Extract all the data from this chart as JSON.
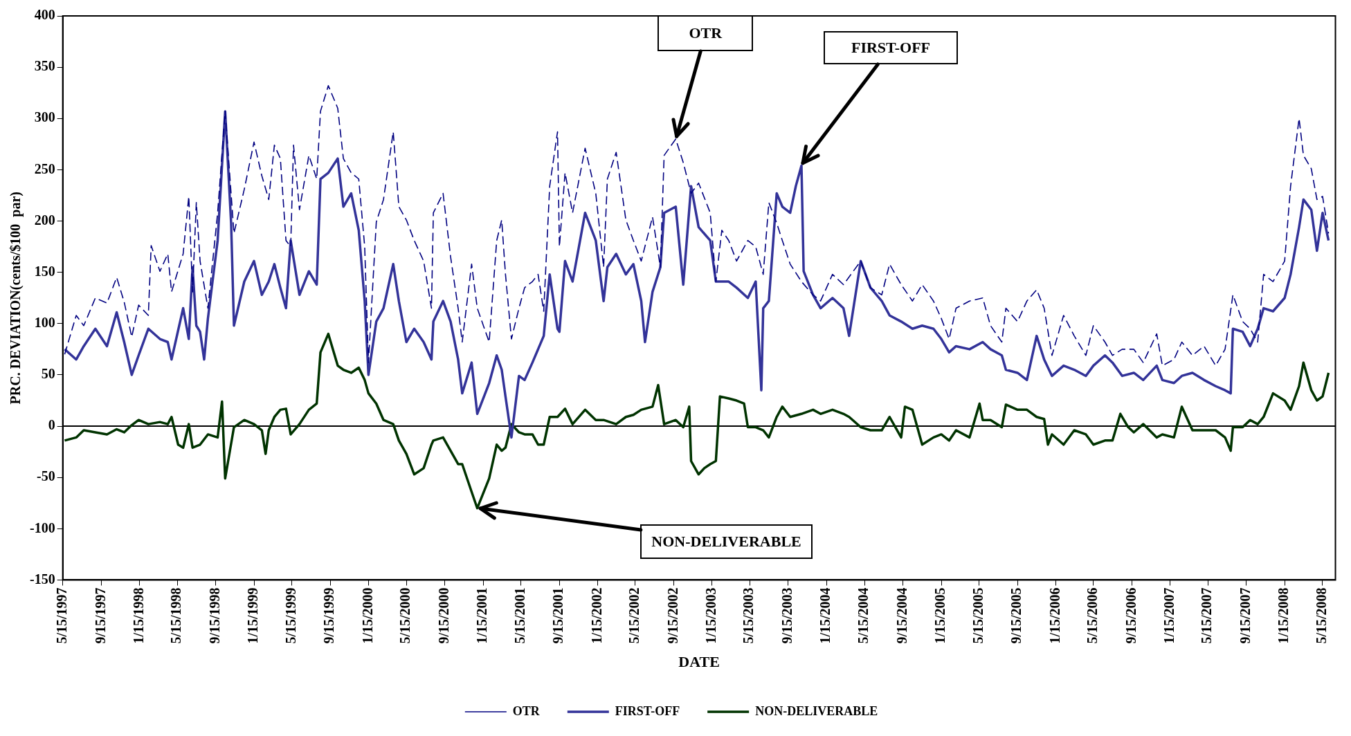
{
  "chart_data": {
    "type": "line",
    "xlabel": "DATE",
    "ylabel": "PRC. DEVIATION(cents/$100  par)",
    "xlim": [
      "1997-05-15",
      "2008-06-25"
    ],
    "ylim": [
      -150,
      400
    ],
    "yticks": [
      -150,
      -100,
      -50,
      0,
      50,
      100,
      150,
      200,
      250,
      300,
      350,
      400
    ],
    "xticks": [
      {
        "value": "1997-05-15",
        "label": "5/15/1997"
      },
      {
        "value": "1997-09-15",
        "label": "9/15/1997"
      },
      {
        "value": "1998-01-15",
        "label": "1/15/1998"
      },
      {
        "value": "1998-05-15",
        "label": "5/15/1998"
      },
      {
        "value": "1998-09-15",
        "label": "9/15/1998"
      },
      {
        "value": "1999-01-15",
        "label": "1/15/1999"
      },
      {
        "value": "1999-05-15",
        "label": "5/15/1999"
      },
      {
        "value": "1999-09-15",
        "label": "9/15/1999"
      },
      {
        "value": "2000-01-15",
        "label": "1/15/2000"
      },
      {
        "value": "2000-05-15",
        "label": "5/15/2000"
      },
      {
        "value": "2000-09-15",
        "label": "9/15/2000"
      },
      {
        "value": "2001-01-15",
        "label": "1/15/2001"
      },
      {
        "value": "2001-05-15",
        "label": "5/15/2001"
      },
      {
        "value": "2001-09-15",
        "label": "9/15/2001"
      },
      {
        "value": "2002-01-15",
        "label": "1/15/2002"
      },
      {
        "value": "2002-05-15",
        "label": "5/15/2002"
      },
      {
        "value": "2002-09-15",
        "label": "9/15/2002"
      },
      {
        "value": "2003-01-15",
        "label": "1/15/2003"
      },
      {
        "value": "2003-05-15",
        "label": "5/15/2003"
      },
      {
        "value": "2003-09-15",
        "label": "9/15/2003"
      },
      {
        "value": "2004-01-15",
        "label": "1/15/2004"
      },
      {
        "value": "2004-05-15",
        "label": "5/15/2004"
      },
      {
        "value": "2004-09-15",
        "label": "9/15/2004"
      },
      {
        "value": "2005-01-15",
        "label": "1/15/2005"
      },
      {
        "value": "2005-05-15",
        "label": "5/15/2005"
      },
      {
        "value": "2005-09-15",
        "label": "9/15/2005"
      },
      {
        "value": "2006-01-15",
        "label": "1/15/2006"
      },
      {
        "value": "2006-05-15",
        "label": "5/15/2006"
      },
      {
        "value": "2006-09-15",
        "label": "9/15/2006"
      },
      {
        "value": "2007-01-15",
        "label": "1/15/2007"
      },
      {
        "value": "2007-05-15",
        "label": "5/15/2007"
      },
      {
        "value": "2007-09-15",
        "label": "9/15/2007"
      },
      {
        "value": "2008-01-15",
        "label": "1/15/2008"
      },
      {
        "value": "2008-05-15",
        "label": "5/15/2008"
      }
    ],
    "grid": false,
    "legend": "bottom",
    "ref_lines": [
      {
        "axis": "y",
        "value": 0
      }
    ],
    "annotations": [
      {
        "text": "OTR",
        "x": "2002-09-21",
        "y": 280
      },
      {
        "text": "FIRST-OFF",
        "x": "2003-10-27",
        "y": 254
      },
      {
        "text": "NON-DELIVERABLE",
        "x": "2000-12-27",
        "y": -80
      }
    ],
    "series": [
      {
        "name": "OTR",
        "color": "#000080",
        "line_style": "dashed",
        "x": [
          "1997-05-21",
          "1997-06-27",
          "1997-07-21",
          "1997-08-27",
          "1997-10-03",
          "1997-11-03",
          "1997-11-27",
          "1997-12-21",
          "1998-01-12",
          "1998-02-12",
          "1998-02-21",
          "1998-03-21",
          "1998-04-15",
          "1998-04-27",
          "1998-06-03",
          "1998-06-21",
          "1998-07-03",
          "1998-07-15",
          "1998-07-27",
          "1998-08-21",
          "1998-09-21",
          "1998-10-15",
          "1998-11-12",
          "1998-12-15",
          "1999-01-15",
          "1999-02-09",
          "1999-03-03",
          "1999-03-21",
          "1999-04-09",
          "1999-04-27",
          "1999-05-12",
          "1999-05-21",
          "1999-06-09",
          "1999-07-09",
          "1999-08-03",
          "1999-08-15",
          "1999-09-09",
          "1999-10-09",
          "1999-10-27",
          "1999-11-21",
          "1999-12-15",
          "2000-01-03",
          "2000-01-15",
          "2000-02-09",
          "2000-03-03",
          "2000-04-03",
          "2000-04-21",
          "2000-05-15",
          "2000-06-09",
          "2000-07-09",
          "2000-08-03",
          "2000-08-09",
          "2000-09-09",
          "2000-10-03",
          "2000-10-27",
          "2000-11-09",
          "2000-12-09",
          "2000-12-27",
          "2001-02-03",
          "2001-02-27",
          "2001-03-15",
          "2001-03-27",
          "2001-04-15",
          "2001-05-09",
          "2001-05-27",
          "2001-06-21",
          "2001-07-09",
          "2001-07-27",
          "2001-08-15",
          "2001-09-09",
          "2001-09-15",
          "2001-10-03",
          "2001-10-27",
          "2001-12-06",
          "2002-01-09",
          "2002-02-03",
          "2002-02-15",
          "2002-03-15",
          "2002-04-15",
          "2002-05-09",
          "2002-06-03",
          "2002-07-09",
          "2002-08-03",
          "2002-08-15",
          "2002-09-21",
          "2002-10-15",
          "2002-11-09",
          "2002-12-03",
          "2003-01-09",
          "2003-01-27",
          "2003-02-15",
          "2003-03-09",
          "2003-04-03",
          "2003-05-09",
          "2003-06-03",
          "2003-06-27",
          "2003-07-15",
          "2003-08-09",
          "2003-08-27",
          "2003-09-21",
          "2003-10-27",
          "2003-12-03",
          "2003-12-27",
          "2004-02-03",
          "2004-03-09",
          "2004-05-03",
          "2004-06-03",
          "2004-07-09",
          "2004-08-03",
          "2004-09-09",
          "2004-10-15",
          "2004-11-15",
          "2004-12-21",
          "2005-01-15",
          "2005-02-09",
          "2005-03-03",
          "2005-04-15",
          "2005-05-27",
          "2005-06-21",
          "2005-07-27",
          "2005-08-09",
          "2005-09-15",
          "2005-10-15",
          "2005-11-15",
          "2005-12-09",
          "2006-01-03",
          "2006-02-09",
          "2006-03-15",
          "2006-04-21",
          "2006-05-15",
          "2006-06-21",
          "2006-07-15",
          "2006-08-15",
          "2006-09-21",
          "2006-10-21",
          "2006-12-03",
          "2006-12-21",
          "2007-01-27",
          "2007-02-21",
          "2007-03-27",
          "2007-05-03",
          "2007-06-09",
          "2007-07-09",
          "2007-08-03",
          "2007-09-03",
          "2007-09-27",
          "2007-10-21",
          "2007-11-09",
          "2007-12-09",
          "2008-01-15",
          "2008-02-03",
          "2008-03-01",
          "2008-03-15",
          "2008-04-09",
          "2008-04-27",
          "2008-05-15",
          "2008-06-03"
        ],
        "values": [
          70,
          108,
          98,
          125,
          120,
          145,
          121,
          87,
          118,
          108,
          176,
          151,
          168,
          131,
          168,
          224,
          131,
          218,
          161,
          115,
          208,
          307,
          188,
          231,
          277,
          244,
          221,
          274,
          261,
          181,
          175,
          274,
          211,
          264,
          241,
          307,
          332,
          310,
          261,
          247,
          241,
          175,
          62,
          199,
          221,
          287,
          214,
          201,
          181,
          161,
          115,
          208,
          227,
          165,
          115,
          82,
          158,
          115,
          82,
          181,
          201,
          148,
          85,
          115,
          135,
          141,
          148,
          112,
          234,
          287,
          175,
          247,
          208,
          271,
          227,
          155,
          241,
          267,
          201,
          181,
          161,
          204,
          155,
          264,
          280,
          257,
          227,
          237,
          208,
          141,
          191,
          181,
          161,
          181,
          175,
          148,
          218,
          198,
          181,
          158,
          141,
          128,
          122,
          148,
          138,
          161,
          135,
          128,
          158,
          138,
          122,
          138,
          122,
          105,
          85,
          115,
          122,
          125,
          98,
          82,
          115,
          102,
          122,
          133,
          115,
          69,
          108,
          88,
          69,
          98,
          82,
          69,
          75,
          75,
          62,
          90,
          59,
          65,
          82,
          69,
          78,
          59,
          75,
          128,
          102,
          95,
          82,
          148,
          141,
          161,
          234,
          300,
          264,
          251,
          221,
          224,
          188
        ]
      },
      {
        "name": "FIRST-OFF",
        "color": "#333399",
        "line_style": "solid",
        "x": [
          "1997-05-21",
          "1997-06-27",
          "1997-07-21",
          "1997-08-27",
          "1997-10-03",
          "1997-11-03",
          "1997-11-27",
          "1997-12-21",
          "1998-01-12",
          "1998-02-12",
          "1998-03-21",
          "1998-04-15",
          "1998-04-27",
          "1998-06-03",
          "1998-06-21",
          "1998-07-03",
          "1998-07-15",
          "1998-07-27",
          "1998-08-09",
          "1998-08-21",
          "1998-09-21",
          "1998-10-15",
          "1998-11-03",
          "1998-11-12",
          "1998-12-15",
          "1999-01-15",
          "1999-02-09",
          "1999-03-03",
          "1999-03-21",
          "1999-04-09",
          "1999-04-27",
          "1999-05-12",
          "1999-06-09",
          "1999-07-09",
          "1999-08-03",
          "1999-08-15",
          "1999-09-09",
          "1999-10-09",
          "1999-10-27",
          "1999-11-21",
          "1999-12-15",
          "2000-01-03",
          "2000-01-15",
          "2000-02-09",
          "2000-03-03",
          "2000-04-03",
          "2000-04-21",
          "2000-05-15",
          "2000-06-09",
          "2000-07-09",
          "2000-08-03",
          "2000-08-09",
          "2000-09-09",
          "2000-10-03",
          "2000-10-27",
          "2000-11-09",
          "2000-12-09",
          "2000-12-27",
          "2001-02-03",
          "2001-02-27",
          "2001-03-15",
          "2001-03-27",
          "2001-04-15",
          "2001-05-09",
          "2001-05-27",
          "2001-06-21",
          "2001-07-09",
          "2001-07-27",
          "2001-08-15",
          "2001-09-09",
          "2001-09-15",
          "2001-10-03",
          "2001-10-27",
          "2001-12-06",
          "2002-01-09",
          "2002-02-03",
          "2002-02-15",
          "2002-03-15",
          "2002-04-15",
          "2002-05-09",
          "2002-06-03",
          "2002-06-15",
          "2002-07-09",
          "2002-08-03",
          "2002-08-15",
          "2002-09-21",
          "2002-10-15",
          "2002-11-09",
          "2002-12-03",
          "2003-01-09",
          "2003-01-27",
          "2003-02-15",
          "2003-03-09",
          "2003-04-03",
          "2003-05-09",
          "2003-06-03",
          "2003-06-21",
          "2003-06-27",
          "2003-07-15",
          "2003-08-09",
          "2003-08-27",
          "2003-09-21",
          "2003-10-09",
          "2003-10-27",
          "2003-11-03",
          "2003-12-03",
          "2003-12-27",
          "2004-02-03",
          "2004-03-09",
          "2004-03-27",
          "2004-05-03",
          "2004-06-03",
          "2004-07-09",
          "2004-08-03",
          "2004-09-09",
          "2004-10-15",
          "2004-11-15",
          "2004-12-21",
          "2005-01-15",
          "2005-02-09",
          "2005-03-03",
          "2005-04-15",
          "2005-05-27",
          "2005-06-21",
          "2005-07-27",
          "2005-08-09",
          "2005-09-15",
          "2005-10-15",
          "2005-11-15",
          "2005-12-09",
          "2006-01-03",
          "2006-02-09",
          "2006-03-15",
          "2006-04-21",
          "2006-05-15",
          "2006-06-21",
          "2006-07-15",
          "2006-08-15",
          "2006-09-21",
          "2006-10-21",
          "2006-12-03",
          "2006-12-21",
          "2007-01-27",
          "2007-02-21",
          "2007-03-27",
          "2007-05-03",
          "2007-06-09",
          "2007-07-09",
          "2007-07-27",
          "2007-08-03",
          "2007-09-03",
          "2007-09-27",
          "2007-10-21",
          "2007-11-09",
          "2007-12-09",
          "2008-01-15",
          "2008-02-03",
          "2008-03-01",
          "2008-03-15",
          "2008-04-09",
          "2008-04-27",
          "2008-05-15",
          "2008-06-03"
        ],
        "values": [
          75,
          65,
          78,
          95,
          78,
          111,
          82,
          50,
          69,
          95,
          85,
          82,
          65,
          115,
          85,
          155,
          98,
          92,
          65,
          105,
          181,
          307,
          198,
          98,
          141,
          161,
          128,
          141,
          158,
          135,
          115,
          181,
          128,
          151,
          138,
          241,
          247,
          261,
          214,
          227,
          191,
          122,
          50,
          102,
          115,
          158,
          122,
          82,
          95,
          82,
          65,
          102,
          122,
          102,
          65,
          32,
          62,
          12,
          42,
          69,
          55,
          29,
          -11,
          49,
          45,
          62,
          75,
          88,
          148,
          95,
          92,
          161,
          141,
          208,
          181,
          122,
          155,
          168,
          148,
          158,
          122,
          82,
          131,
          155,
          208,
          214,
          138,
          234,
          194,
          181,
          141,
          141,
          141,
          135,
          125,
          141,
          35,
          115,
          122,
          227,
          214,
          208,
          234,
          254,
          151,
          128,
          115,
          125,
          115,
          88,
          161,
          135,
          122,
          108,
          102,
          95,
          98,
          95,
          85,
          72,
          78,
          75,
          82,
          75,
          69,
          55,
          52,
          45,
          88,
          65,
          49,
          59,
          55,
          49,
          59,
          69,
          62,
          49,
          52,
          45,
          59,
          45,
          42,
          49,
          52,
          45,
          39,
          35,
          32,
          95,
          92,
          78,
          95,
          115,
          112,
          125,
          148,
          194,
          221,
          211,
          171,
          208,
          181
        ]
      },
      {
        "name": "NON-DELIVERABLE",
        "color": "#003300",
        "line_style": "solid",
        "x": [
          "1997-05-21",
          "1997-06-27",
          "1997-07-21",
          "1997-08-27",
          "1997-10-03",
          "1997-11-03",
          "1997-11-27",
          "1997-12-21",
          "1998-01-12",
          "1998-02-12",
          "1998-03-21",
          "1998-04-15",
          "1998-04-27",
          "1998-05-18",
          "1998-06-03",
          "1998-06-21",
          "1998-07-03",
          "1998-07-27",
          "1998-08-21",
          "1998-09-21",
          "1998-10-05",
          "1998-10-15",
          "1998-11-12",
          "1998-12-15",
          "1999-01-15",
          "1999-02-09",
          "1999-02-21",
          "1999-03-03",
          "1999-03-21",
          "1999-04-09",
          "1999-04-27",
          "1999-05-12",
          "1999-06-09",
          "1999-07-09",
          "1999-08-03",
          "1999-08-15",
          "1999-09-09",
          "1999-10-09",
          "1999-10-27",
          "1999-11-21",
          "1999-12-15",
          "2000-01-03",
          "2000-01-15",
          "2000-02-09",
          "2000-03-03",
          "2000-04-03",
          "2000-04-21",
          "2000-05-15",
          "2000-06-09",
          "2000-07-09",
          "2000-08-03",
          "2000-08-09",
          "2000-09-09",
          "2000-10-03",
          "2000-10-27",
          "2000-11-09",
          "2000-12-09",
          "2000-12-27",
          "2001-02-03",
          "2001-02-27",
          "2001-03-15",
          "2001-03-27",
          "2001-04-15",
          "2001-05-09",
          "2001-05-27",
          "2001-06-21",
          "2001-07-09",
          "2001-07-27",
          "2001-08-15",
          "2001-09-09",
          "2001-10-03",
          "2001-10-27",
          "2001-12-06",
          "2002-01-09",
          "2002-02-03",
          "2002-03-15",
          "2002-04-15",
          "2002-05-09",
          "2002-06-03",
          "2002-07-09",
          "2002-07-27",
          "2002-08-15",
          "2002-09-21",
          "2002-10-15",
          "2002-11-03",
          "2002-11-09",
          "2002-12-03",
          "2002-12-21",
          "2003-01-09",
          "2003-01-27",
          "2003-02-09",
          "2003-03-09",
          "2003-04-03",
          "2003-04-27",
          "2003-05-09",
          "2003-06-03",
          "2003-06-27",
          "2003-07-15",
          "2003-08-09",
          "2003-08-27",
          "2003-09-21",
          "2003-10-27",
          "2003-12-03",
          "2003-12-27",
          "2004-02-03",
          "2004-03-09",
          "2004-03-27",
          "2004-05-03",
          "2004-06-03",
          "2004-07-09",
          "2004-08-03",
          "2004-09-09",
          "2004-09-21",
          "2004-10-15",
          "2004-11-15",
          "2004-12-21",
          "2005-01-15",
          "2005-02-09",
          "2005-03-03",
          "2005-04-15",
          "2005-05-17",
          "2005-05-27",
          "2005-06-21",
          "2005-07-27",
          "2005-08-09",
          "2005-09-15",
          "2005-10-15",
          "2005-11-15",
          "2005-12-09",
          "2005-12-21",
          "2006-01-03",
          "2006-02-09",
          "2006-03-15",
          "2006-04-21",
          "2006-05-15",
          "2006-06-21",
          "2006-07-15",
          "2006-08-09",
          "2006-09-03",
          "2006-09-21",
          "2006-10-21",
          "2006-12-03",
          "2006-12-21",
          "2007-01-27",
          "2007-02-21",
          "2007-03-27",
          "2007-05-03",
          "2007-06-09",
          "2007-07-09",
          "2007-07-27",
          "2007-08-03",
          "2007-09-03",
          "2007-09-27",
          "2007-10-21",
          "2007-11-09",
          "2007-12-09",
          "2008-01-15",
          "2008-02-03",
          "2008-03-01",
          "2008-03-15",
          "2008-04-09",
          "2008-04-27",
          "2008-05-15",
          "2008-06-03"
        ],
        "values": [
          -14,
          -11,
          -4,
          -6,
          -8,
          -3,
          -6,
          1,
          6,
          2,
          4,
          2,
          9,
          -18,
          -21,
          2,
          -21,
          -18,
          -8,
          -11,
          24,
          -51,
          -1,
          6,
          2,
          -4,
          -27,
          -4,
          9,
          16,
          17,
          -8,
          2,
          16,
          22,
          72,
          90,
          59,
          55,
          52,
          57,
          45,
          32,
          22,
          6,
          2,
          -14,
          -27,
          -47,
          -41,
          -18,
          -14,
          -11,
          -24,
          -37,
          -37,
          -64,
          -80,
          -51,
          -18,
          -24,
          -21,
          2,
          -6,
          -8,
          -8,
          -18,
          -18,
          9,
          9,
          17,
          2,
          16,
          6,
          6,
          2,
          9,
          11,
          16,
          19,
          40,
          2,
          6,
          -1,
          19,
          -34,
          -47,
          -41,
          -37,
          -34,
          29,
          27,
          25,
          22,
          -1,
          -1,
          -4,
          -11,
          9,
          19,
          9,
          12,
          16,
          12,
          16,
          12,
          9,
          -1,
          -4,
          -4,
          9,
          -11,
          19,
          16,
          -18,
          -11,
          -8,
          -14,
          -4,
          -11,
          22,
          6,
          6,
          -1,
          21,
          16,
          16,
          9,
          7,
          -18,
          -8,
          -18,
          -4,
          -8,
          -18,
          -14,
          -14,
          12,
          -1,
          -6,
          2,
          -11,
          -8,
          -11,
          19,
          -4,
          -4,
          -4,
          -11,
          -24,
          -1,
          -1,
          6,
          2,
          9,
          32,
          25,
          16,
          39,
          62,
          35,
          25,
          29,
          52
        ]
      }
    ]
  }
}
